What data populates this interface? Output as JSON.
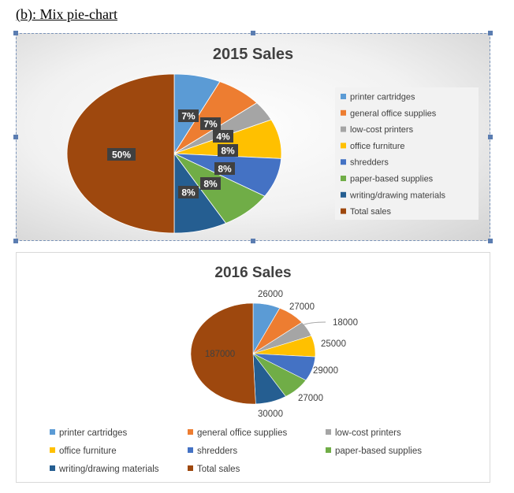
{
  "heading": "(b): Mix pie-chart",
  "chart_data": [
    {
      "type": "pie",
      "title": "2015 Sales",
      "categories": [
        "printer cartridges",
        "general office supplies",
        "low-cost printers",
        "office furniture",
        "shredders",
        "paper-based supplies",
        "writing/drawing materials",
        "Total sales"
      ],
      "values": [
        7,
        7,
        4,
        8,
        8,
        8,
        8,
        50
      ],
      "labels": [
        "7%",
        "7%",
        "4%",
        "8%",
        "8%",
        "8%",
        "8%",
        "50%"
      ],
      "colors": [
        "#5b9bd5",
        "#ed7d31",
        "#a5a5a5",
        "#ffc000",
        "#4472c4",
        "#70ad47",
        "#255e91",
        "#9e480e"
      ],
      "legend": "right"
    },
    {
      "type": "pie",
      "title": "2016 Sales",
      "categories": [
        "printer cartridges",
        "general office supplies",
        "low-cost printers",
        "office furniture",
        "shredders",
        "paper-based supplies",
        "writing/drawing materials",
        "Total sales"
      ],
      "values": [
        26000,
        27000,
        18000,
        25000,
        29000,
        27000,
        30000,
        187000
      ],
      "labels": [
        "26000",
        "27000",
        "18000",
        "25000",
        "29000",
        "27000",
        "30000",
        "187000"
      ],
      "colors": [
        "#5b9bd5",
        "#ed7d31",
        "#a5a5a5",
        "#ffc000",
        "#4472c4",
        "#70ad47",
        "#255e91",
        "#9e480e"
      ],
      "legend": "bottom"
    }
  ]
}
